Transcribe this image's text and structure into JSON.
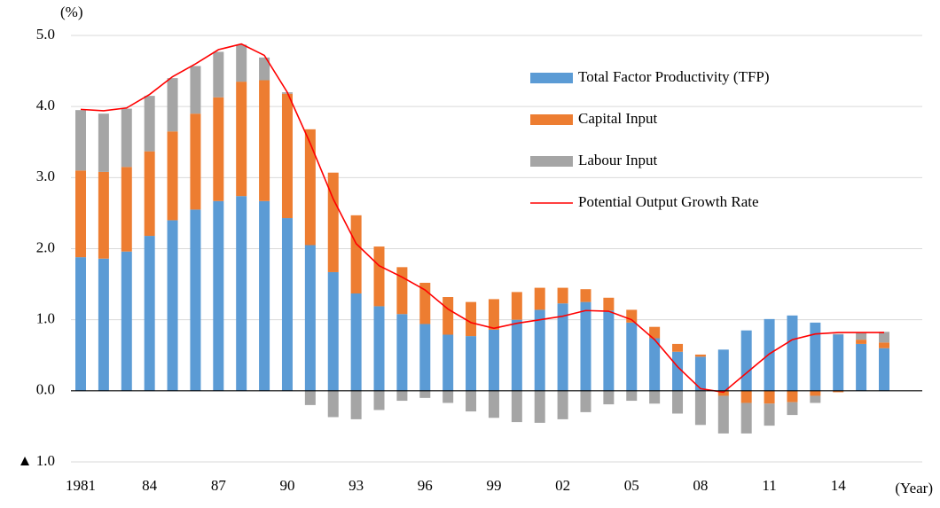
{
  "chart_data": {
    "type": "bar",
    "stacked": true,
    "y_unit_label": "(%)",
    "x_unit_label": "(Year)",
    "categories": [
      "1981",
      null,
      null,
      "84",
      null,
      null,
      "87",
      null,
      null,
      "90",
      null,
      null,
      "93",
      null,
      null,
      "96",
      null,
      null,
      "99",
      null,
      null,
      "02",
      null,
      null,
      "05",
      null,
      null,
      "08",
      null,
      null,
      "11",
      null,
      null,
      "14",
      null,
      null
    ],
    "series": [
      {
        "name": "Total Factor Productivity (TFP)",
        "color": "#5b9bd5",
        "values": [
          1.88,
          1.86,
          1.96,
          2.18,
          2.4,
          2.55,
          2.67,
          2.74,
          2.67,
          2.43,
          2.05,
          1.67,
          1.37,
          1.19,
          1.08,
          0.94,
          0.79,
          0.77,
          0.86,
          1.0,
          1.14,
          1.23,
          1.25,
          1.13,
          0.96,
          0.74,
          0.55,
          0.48,
          0.58,
          0.85,
          1.01,
          1.06,
          0.96,
          0.79,
          0.66,
          0.6
        ]
      },
      {
        "name": "Capital Input",
        "color": "#ed7d31",
        "values": [
          1.22,
          1.22,
          1.19,
          1.19,
          1.25,
          1.35,
          1.46,
          1.61,
          1.7,
          1.75,
          1.63,
          1.4,
          1.1,
          0.84,
          0.66,
          0.58,
          0.53,
          0.48,
          0.43,
          0.39,
          0.31,
          0.22,
          0.18,
          0.18,
          0.18,
          0.16,
          0.11,
          0.03,
          -0.07,
          -0.17,
          -0.18,
          -0.16,
          -0.07,
          -0.02,
          0.06,
          0.08
        ]
      },
      {
        "name": "Labour Input",
        "color": "#a5a5a5",
        "values": [
          0.85,
          0.82,
          0.82,
          0.78,
          0.75,
          0.67,
          0.64,
          0.52,
          0.32,
          0.02,
          -0.2,
          -0.37,
          -0.4,
          -0.27,
          -0.14,
          -0.1,
          -0.17,
          -0.29,
          -0.38,
          -0.44,
          -0.45,
          -0.4,
          -0.3,
          -0.19,
          -0.14,
          -0.18,
          -0.32,
          -0.48,
          -0.53,
          -0.43,
          -0.31,
          -0.18,
          -0.1,
          0.01,
          0.1,
          0.15
        ]
      },
      {
        "name": "Potential Output Growth Rate",
        "color": "#ff0000",
        "kind": "line",
        "values": [
          3.96,
          3.94,
          3.98,
          4.17,
          4.42,
          4.6,
          4.8,
          4.88,
          4.72,
          4.2,
          3.48,
          2.7,
          2.07,
          1.76,
          1.6,
          1.42,
          1.15,
          0.96,
          0.88,
          0.95,
          1.0,
          1.05,
          1.13,
          1.12,
          1.0,
          0.72,
          0.34,
          0.03,
          -0.02,
          0.25,
          0.52,
          0.72,
          0.8,
          0.82,
          0.82,
          0.82
        ]
      }
    ],
    "ylim": [
      -1,
      5
    ],
    "yticks": [
      {
        "value": 5,
        "label": "5.0"
      },
      {
        "value": 4,
        "label": "4.0"
      },
      {
        "value": 3,
        "label": "3.0"
      },
      {
        "value": 2,
        "label": "2.0"
      },
      {
        "value": 1,
        "label": "1.0"
      },
      {
        "value": 0,
        "label": "0.0"
      },
      {
        "value": -1,
        "label": "▲ 1.0"
      }
    ],
    "grid": true,
    "legend": "upper right"
  }
}
